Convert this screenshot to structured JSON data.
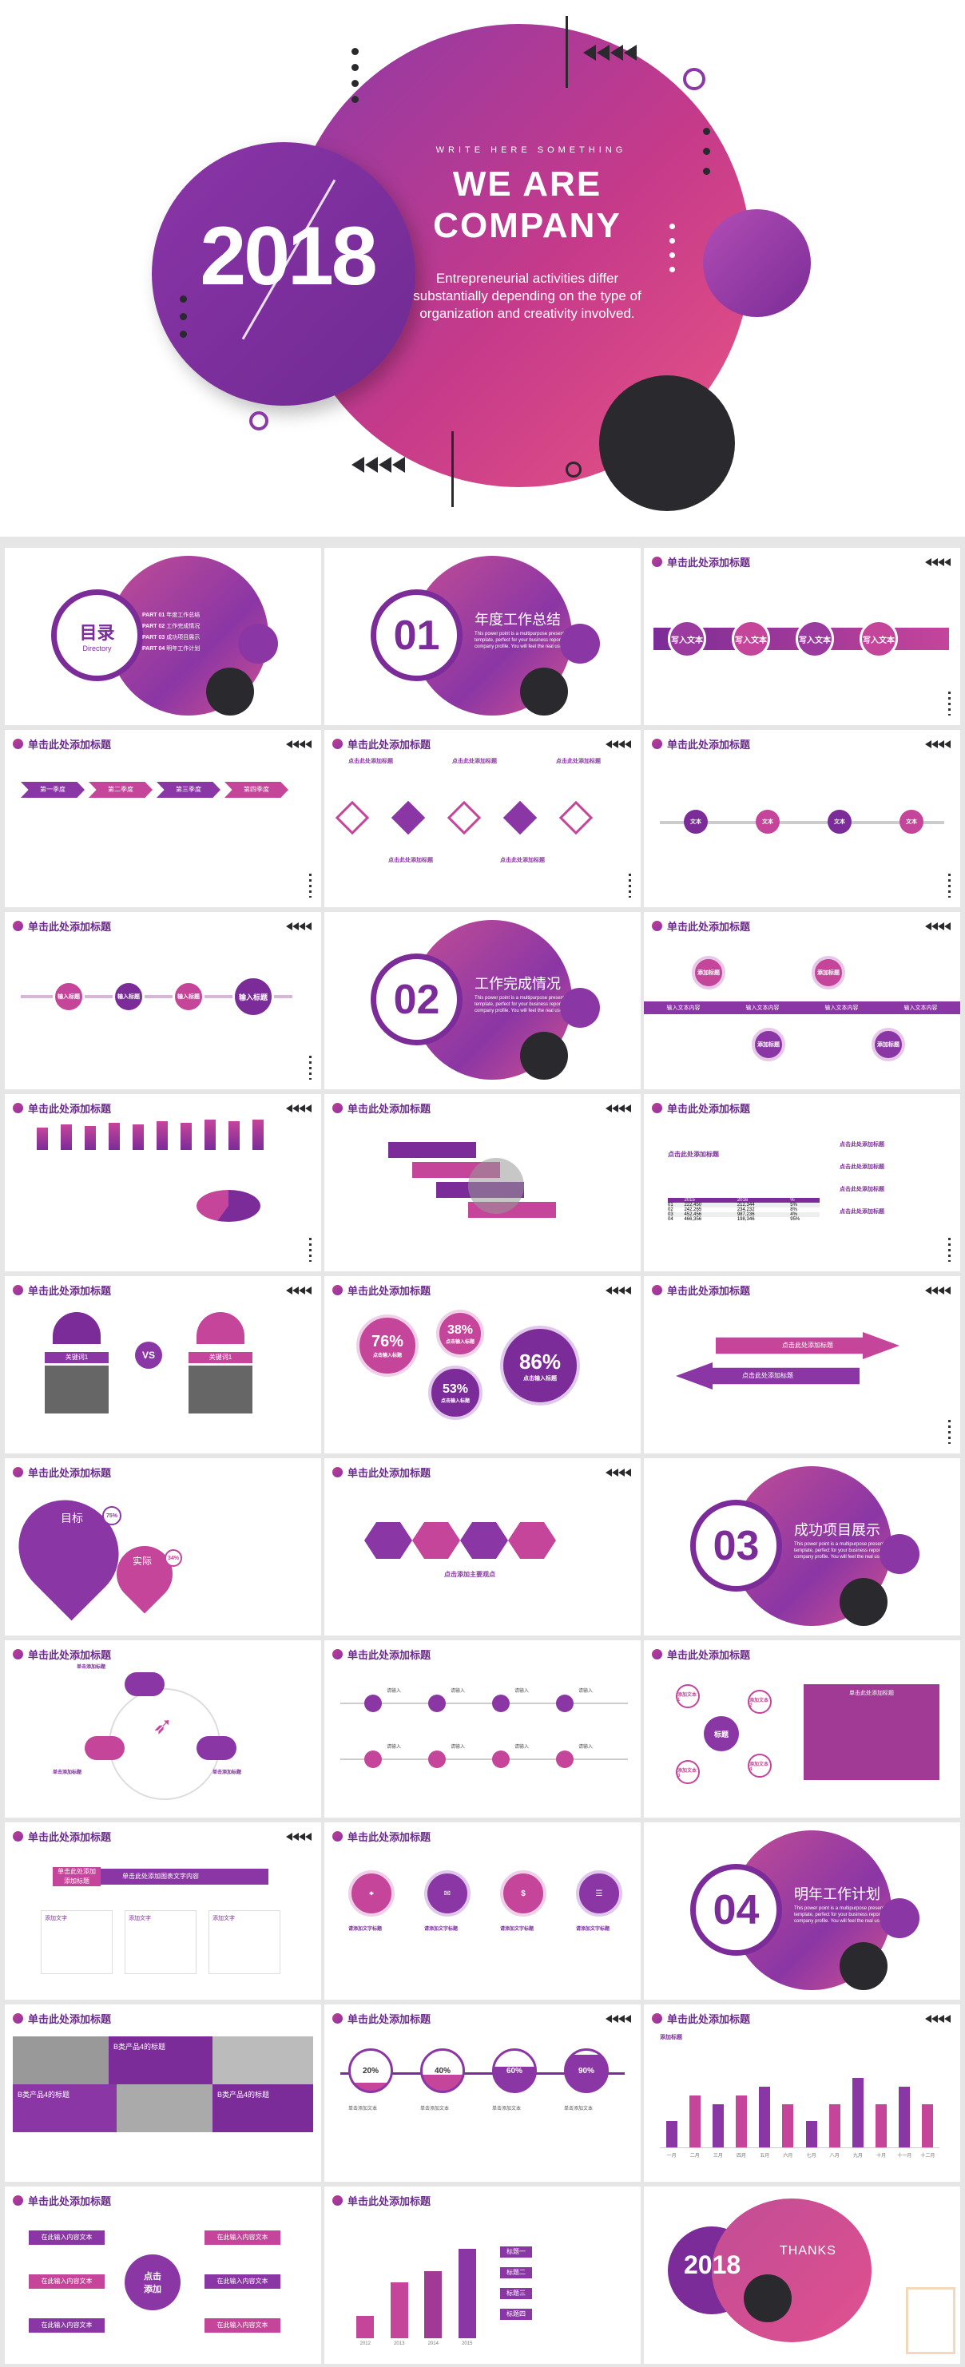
{
  "hero": {
    "year": "2018",
    "tagline": "WRITE HERE SOMETHING",
    "title_line1": "WE ARE",
    "title_line2": "COMPANY",
    "description": "Entrepreneurial activities differ substantially depending on the type of organization and creativity involved.",
    "colors": {
      "magenta": "#c63a8a",
      "purple": "#7b2c98",
      "dark": "#2a2a2e"
    }
  },
  "common": {
    "slide_title": "单击此处添加标题"
  },
  "toc": {
    "title": "目录",
    "subtitle": "Directory",
    "parts": [
      {
        "num": "PART 01",
        "label": "年度工作总结"
      },
      {
        "num": "PART 02",
        "label": "工作完成情况"
      },
      {
        "num": "PART 03",
        "label": "成功项目展示"
      },
      {
        "num": "PART 04",
        "label": "明年工作计划"
      }
    ]
  },
  "sections": [
    {
      "num": "01",
      "title": "年度工作总结"
    },
    {
      "num": "02",
      "title": "工作完成情况"
    },
    {
      "num": "03",
      "title": "成功项目展示"
    },
    {
      "num": "04",
      "title": "明年工作计划"
    }
  ],
  "section_body": "This power point is a multipurpose presentation template, perfect for your business report or company profile. You will feel the real use.",
  "s3": {
    "items": [
      "写入文本",
      "写入文本",
      "写入文本",
      "写入文本"
    ]
  },
  "s4": {
    "items": [
      "第一季度",
      "第二季度",
      "第三季度",
      "第四季度"
    ]
  },
  "s5": {
    "top": [
      "点击此处添加标题",
      "点击此处添加标题",
      "点击此处添加标题"
    ],
    "bottom": [
      "点击此处添加标题",
      "点击此处添加标题"
    ]
  },
  "s6": {
    "items": [
      "文本",
      "文本",
      "文本",
      "文本"
    ]
  },
  "s7": {
    "items": [
      "输入标题",
      "输入标题",
      "输入标题",
      "输入标题"
    ]
  },
  "s9": {
    "items": [
      "添加标题",
      "添加标题",
      "添加标题",
      "添加标题"
    ],
    "band": [
      "输入文本内容",
      "输入文本内容",
      "输入文本内容",
      "输入文本内容"
    ]
  },
  "s12": {
    "sub": "点击此处添加标题",
    "table_header": [
      "",
      "2015",
      "2016",
      "%"
    ],
    "table_rows": [
      [
        "01",
        "222,450",
        "212,344",
        "5%"
      ],
      [
        "02",
        "242,265",
        "234,232",
        "8%"
      ],
      [
        "03",
        "452,456",
        "987,236",
        "4%"
      ],
      [
        "04",
        "466,356",
        "198,346",
        "95%"
      ]
    ],
    "right_items": [
      "点击此处添加标题",
      "点击此处添加标题",
      "点击此处添加标题",
      "点击此处添加标题"
    ]
  },
  "s13": {
    "left_label": "关键词1",
    "right_label": "关键词1",
    "vs": "VS"
  },
  "s14": {
    "values": [
      {
        "pct": "76%",
        "label": "点击输入标题"
      },
      {
        "pct": "38%",
        "label": "点击输入标题"
      },
      {
        "pct": "53%",
        "label": "点击输入标题"
      },
      {
        "pct": "86%",
        "label": "点击输入标题"
      }
    ]
  },
  "s15": {
    "labels": [
      "点击此处添加标题",
      "点击此处添加标题"
    ]
  },
  "s16": {
    "target": "目标",
    "target_pct": "75%",
    "actual": "实际",
    "actual_pct": "34%"
  },
  "s17": {
    "caption": "点击添加主要观点"
  },
  "s19": {
    "labels": [
      "单击添加标题",
      "单击添加标题",
      "单击添加标题"
    ]
  },
  "s20": {
    "labels": [
      "请输入",
      "请输入",
      "请输入",
      "请输入",
      "请输入",
      "请输入",
      "请输入",
      "请输入"
    ]
  },
  "s21": {
    "center": "标题",
    "nodes": [
      "添加文本1",
      "添加文本2",
      "添加文本3",
      "添加文本4"
    ],
    "box_title": "单击此处添加标题"
  },
  "s22": {
    "left": "单击此处添加",
    "sub": "添加标题",
    "right": "单击此处添加图表文字内容",
    "cards": [
      "添加文字",
      "添加文字",
      "添加文字"
    ]
  },
  "s23": {
    "titles": [
      "请添加文字标题",
      "请添加文字标题",
      "请添加文字标题",
      "请添加文字标题"
    ]
  },
  "s25": {
    "tl": "B类产品4的标题",
    "bl": "B类产品4的标题",
    "br": "B类产品4的标题"
  },
  "s26": {
    "values": [
      "20%",
      "40%",
      "60%",
      "90%"
    ],
    "labels": [
      "单击添加文本",
      "单击添加文本",
      "单击添加文本",
      "单击添加文本"
    ]
  },
  "s27": {
    "label": "添加标题",
    "chart_data": {
      "type": "bar",
      "categories": [
        "一月",
        "二月",
        "三月",
        "四月",
        "五月",
        "六月",
        "七月",
        "八月",
        "九月",
        "十月",
        "十一月",
        "十二月"
      ],
      "values": [
        3,
        6,
        5,
        6,
        7,
        5,
        3,
        5,
        8,
        5,
        7,
        5
      ]
    }
  },
  "s28": {
    "center_line1": "点击",
    "center_line2": "添加",
    "items": [
      "在此输入内容文本",
      "在此输入内容文本",
      "在此输入内容文本",
      "在此输入内容文本",
      "在此输入内容文本",
      "在此输入内容文本"
    ]
  },
  "s29": {
    "chart_data": {
      "type": "bar",
      "categories": [
        "2012",
        "2013",
        "2014",
        "2015"
      ],
      "values": [
        20,
        50,
        60,
        80
      ]
    },
    "side": [
      "标题一",
      "标题二",
      "标题三",
      "标题四"
    ]
  },
  "s30": {
    "year": "2018",
    "thanks": "THANKS"
  }
}
